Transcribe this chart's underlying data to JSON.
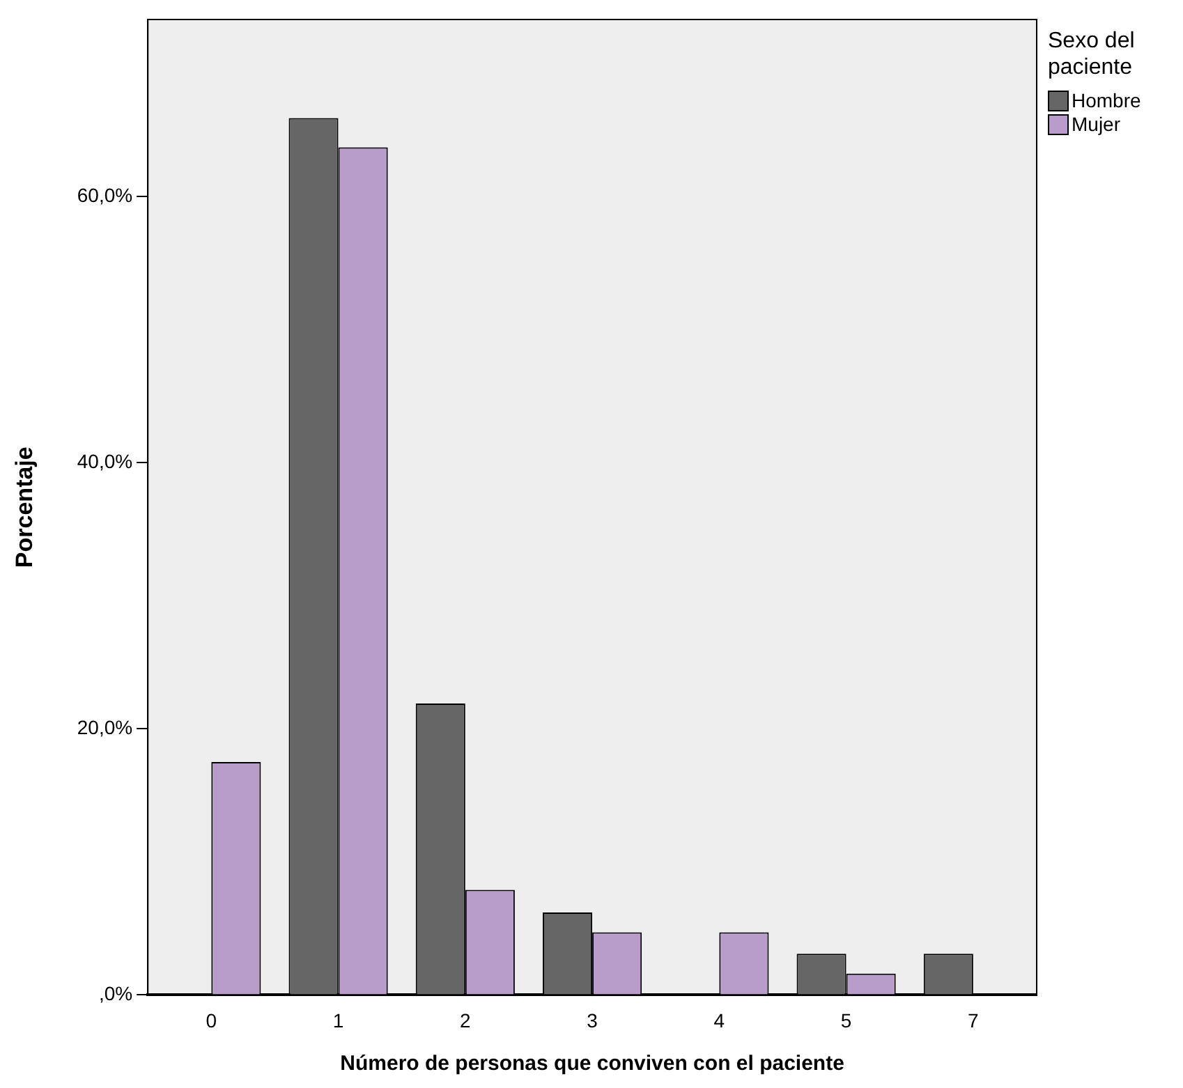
{
  "chart_data": {
    "type": "bar",
    "xlabel": "Número de personas que conviven con el paciente",
    "ylabel": "Porcentaje",
    "legend_title": "Sexo del paciente",
    "categories": [
      "0",
      "1",
      "2",
      "3",
      "4",
      "5",
      "7"
    ],
    "series": [
      {
        "name": "Hombre",
        "color": "#666666",
        "values": [
          0,
          65.9,
          21.9,
          6.2,
          0,
          3.1,
          3.1
        ]
      },
      {
        "name": "Mujer",
        "color": "#b89cca",
        "values": [
          17.5,
          63.7,
          7.9,
          4.7,
          4.7,
          1.6,
          0
        ]
      }
    ],
    "ylim": [
      0,
      73.3
    ],
    "yticks": [
      {
        "value": 0,
        "label": ",0%"
      },
      {
        "value": 20,
        "label": "20,0%"
      },
      {
        "value": 40,
        "label": "40,0%"
      },
      {
        "value": 60,
        "label": "60,0%"
      }
    ],
    "grid": false,
    "legend": "top right"
  }
}
